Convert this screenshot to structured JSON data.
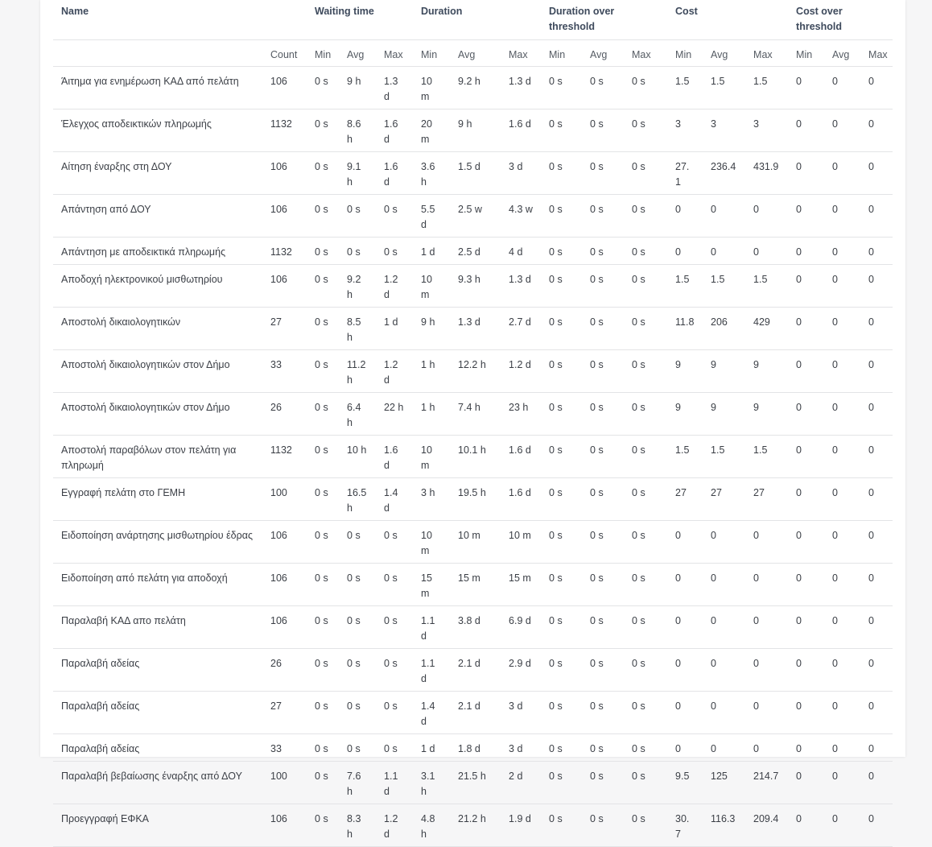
{
  "headers": {
    "name": "Name",
    "waiting_time": "Waiting time",
    "duration": "Duration",
    "duration_over_threshold": "Duration over threshold",
    "cost": "Cost",
    "cost_over_threshold": "Cost over threshold"
  },
  "subheaders": [
    "Count",
    "Min",
    "Avg",
    "Max",
    "Min",
    "Avg",
    "Max",
    "Min",
    "Avg",
    "Max",
    "Min",
    "Avg",
    "Max",
    "Min",
    "Avg",
    "Max"
  ],
  "rows": [
    [
      "Άιτημα για ενημέρωση ΚΑΔ από πελάτη",
      "106",
      "0 s",
      "9 h",
      "1.3 d",
      "10 m",
      "9.2 h",
      "1.3 d",
      "0 s",
      "0 s",
      "0 s",
      "1.5",
      "1.5",
      "1.5",
      "0",
      "0",
      "0"
    ],
    [
      "Έλεγχος αποδεικτικών πληρωμής",
      "1132",
      "0 s",
      "8.6 h",
      "1.6 d",
      "20 m",
      "9 h",
      "1.6 d",
      "0 s",
      "0 s",
      "0 s",
      "3",
      "3",
      "3",
      "0",
      "0",
      "0"
    ],
    [
      "Αίτηση έναρξης στη ΔΟΥ",
      "106",
      "0 s",
      "9.1 h",
      "1.6 d",
      "3.6 h",
      "1.5 d",
      "3 d",
      "0 s",
      "0 s",
      "0 s",
      "27.1",
      "236.4",
      "431.9",
      "0",
      "0",
      "0"
    ],
    [
      "Απάντηση από ΔΟΥ",
      "106",
      "0 s",
      "0 s",
      "0 s",
      "5.5 d",
      "2.5 w",
      "4.3 w",
      "0 s",
      "0 s",
      "0 s",
      "0",
      "0",
      "0",
      "0",
      "0",
      "0"
    ],
    [
      "Απάντηση με αποδεικτικά πληρωμής",
      "1132",
      "0 s",
      "0 s",
      "0 s",
      "1 d",
      "2.5 d",
      "4 d",
      "0 s",
      "0 s",
      "0 s",
      "0",
      "0",
      "0",
      "0",
      "0",
      "0"
    ],
    [
      "Αποδοχή ηλεκτρονικού μισθωτηρίου",
      "106",
      "0 s",
      "9.2 h",
      "1.2 d",
      "10 m",
      "9.3 h",
      "1.3 d",
      "0 s",
      "0 s",
      "0 s",
      "1.5",
      "1.5",
      "1.5",
      "0",
      "0",
      "0"
    ],
    [
      "Αποστολή δικαιολογητικών",
      "27",
      "0 s",
      "8.5 h",
      "1 d",
      "9 h",
      "1.3 d",
      "2.7 d",
      "0 s",
      "0 s",
      "0 s",
      "11.8",
      "206",
      "429",
      "0",
      "0",
      "0"
    ],
    [
      "Αποστολή δικαιολογητικών στον Δήμο",
      "33",
      "0 s",
      "11.2 h",
      "1.2 d",
      "1 h",
      "12.2 h",
      "1.2 d",
      "0 s",
      "0 s",
      "0 s",
      "9",
      "9",
      "9",
      "0",
      "0",
      "0"
    ],
    [
      "Αποστολή δικαιολογητικών στον Δήμο",
      "26",
      "0 s",
      "6.4 h",
      "22 h",
      "1 h",
      "7.4 h",
      "23 h",
      "0 s",
      "0 s",
      "0 s",
      "9",
      "9",
      "9",
      "0",
      "0",
      "0"
    ],
    [
      "Αποστολή παραβόλων στον πελάτη για πληρωμή",
      "1132",
      "0 s",
      "10 h",
      "1.6 d",
      "10 m",
      "10.1 h",
      "1.6 d",
      "0 s",
      "0 s",
      "0 s",
      "1.5",
      "1.5",
      "1.5",
      "0",
      "0",
      "0"
    ],
    [
      "Εγγραφή πελάτη στο ΓΕΜΗ",
      "100",
      "0 s",
      "16.5 h",
      "1.4 d",
      "3 h",
      "19.5 h",
      "1.6 d",
      "0 s",
      "0 s",
      "0 s",
      "27",
      "27",
      "27",
      "0",
      "0",
      "0"
    ],
    [
      "Ειδοποίηση ανάρτησης μισθωτηρίου έδρας",
      "106",
      "0 s",
      "0 s",
      "0 s",
      "10 m",
      "10 m",
      "10 m",
      "0 s",
      "0 s",
      "0 s",
      "0",
      "0",
      "0",
      "0",
      "0",
      "0"
    ],
    [
      "Ειδοποίηση από πελάτη για αποδοχή",
      "106",
      "0 s",
      "0 s",
      "0 s",
      "15 m",
      "15 m",
      "15 m",
      "0 s",
      "0 s",
      "0 s",
      "0",
      "0",
      "0",
      "0",
      "0",
      "0"
    ],
    [
      "Παραλαβή ΚΑΔ απο πελάτη",
      "106",
      "0 s",
      "0 s",
      "0 s",
      "1.1 d",
      "3.8 d",
      "6.9 d",
      "0 s",
      "0 s",
      "0 s",
      "0",
      "0",
      "0",
      "0",
      "0",
      "0"
    ],
    [
      "Παραλαβή αδείας",
      "26",
      "0 s",
      "0 s",
      "0 s",
      "1.1 d",
      "2.1 d",
      "2.9 d",
      "0 s",
      "0 s",
      "0 s",
      "0",
      "0",
      "0",
      "0",
      "0",
      "0"
    ],
    [
      "Παραλαβή αδείας",
      "27",
      "0 s",
      "0 s",
      "0 s",
      "1.4 d",
      "2.1 d",
      "3 d",
      "0 s",
      "0 s",
      "0 s",
      "0",
      "0",
      "0",
      "0",
      "0",
      "0"
    ],
    [
      "Παραλαβή αδείας",
      "33",
      "0 s",
      "0 s",
      "0 s",
      "1 d",
      "1.8 d",
      "3 d",
      "0 s",
      "0 s",
      "0 s",
      "0",
      "0",
      "0",
      "0",
      "0",
      "0"
    ],
    [
      "Παραλαβή βεβαίωσης έναρξης από ΔΟΥ",
      "100",
      "0 s",
      "7.6 h",
      "1.1 d",
      "3.1 h",
      "21.5 h",
      "2 d",
      "0 s",
      "0 s",
      "0 s",
      "9.5",
      "125",
      "214.7",
      "0",
      "0",
      "0"
    ],
    [
      "Προεγγραφή ΕΦΚΑ",
      "106",
      "0 s",
      "8.3 h",
      "1.2 d",
      "4.8 h",
      "21.2 h",
      "1.9 d",
      "0 s",
      "0 s",
      "0 s",
      "30.7",
      "116.3",
      "209.4",
      "0",
      "0",
      "0"
    ]
  ]
}
